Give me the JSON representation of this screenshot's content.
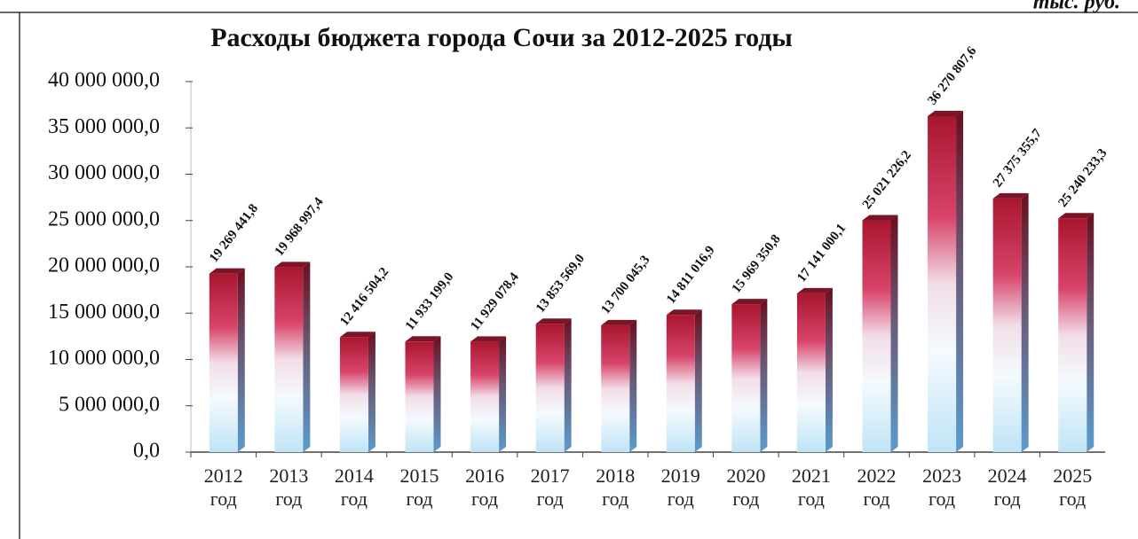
{
  "chart_data": {
    "type": "bar",
    "title": "Расходы бюджета города Сочи за 2012-2025 годы",
    "subtitle": "тыс. руб.",
    "categories": [
      "2012 год",
      "2013 год",
      "2014 год",
      "2015 год",
      "2016 год",
      "2017 год",
      "2018 год",
      "2019 год",
      "2020 год",
      "2021 год",
      "2022 год",
      "2023 год",
      "2024 год",
      "2025 год"
    ],
    "values": [
      19269441.8,
      19968997.4,
      12416504.2,
      11933199.0,
      11929078.4,
      13853569.0,
      13700045.3,
      14811016.9,
      15969350.8,
      17141000.1,
      25021226.2,
      36270807.6,
      27375355.7,
      25240233.3
    ],
    "value_labels": [
      "19 269 441,8",
      "19 968 997,4",
      "12 416 504,2",
      "11 933 199,0",
      "11 929 078,4",
      "13 853 569,0",
      "13 700 045,3",
      "14 811 016,9",
      "15 969 350,8",
      "17 141 000,1",
      "25 021 226,2",
      "36 270 807,6",
      "27 375 355,7",
      "25 240 233,3"
    ],
    "ylim": [
      0,
      40000000
    ],
    "yticks": [
      {
        "value": 0,
        "label": "0,0"
      },
      {
        "value": 5000000,
        "label": "5 000 000,0"
      },
      {
        "value": 10000000,
        "label": "10 000 000,0"
      },
      {
        "value": 15000000,
        "label": "15 000 000,0"
      },
      {
        "value": 20000000,
        "label": "20 000 000,0"
      },
      {
        "value": 25000000,
        "label": "25 000 000,0"
      },
      {
        "value": 30000000,
        "label": "30 000 000,0"
      },
      {
        "value": 35000000,
        "label": "35 000 000,0"
      },
      {
        "value": 40000000,
        "label": "40 000 000,0"
      }
    ]
  }
}
